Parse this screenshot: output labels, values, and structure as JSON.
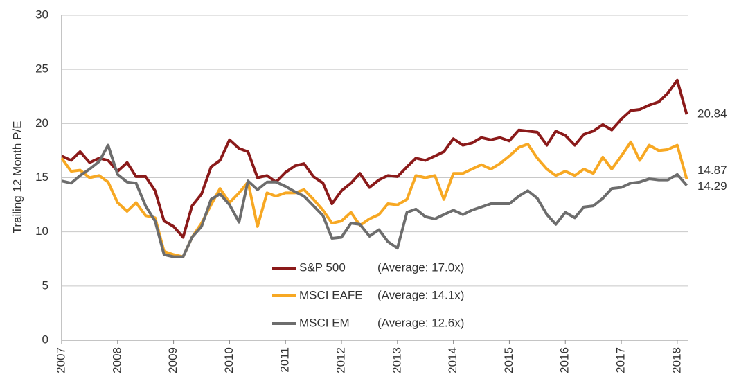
{
  "chart_data": {
    "type": "line",
    "y_label": "Trailing 12 Month P/E",
    "x": [
      2007,
      2007.17,
      2007.33,
      2007.5,
      2007.67,
      2007.83,
      2008,
      2008.17,
      2008.33,
      2008.5,
      2008.67,
      2008.83,
      2009,
      2009.17,
      2009.33,
      2009.5,
      2009.67,
      2009.83,
      2010,
      2010.17,
      2010.33,
      2010.5,
      2010.67,
      2010.83,
      2011,
      2011.17,
      2011.33,
      2011.5,
      2011.67,
      2011.83,
      2012,
      2012.17,
      2012.33,
      2012.5,
      2012.67,
      2012.83,
      2013,
      2013.17,
      2013.33,
      2013.5,
      2013.67,
      2013.83,
      2014,
      2014.17,
      2014.33,
      2014.5,
      2014.67,
      2014.83,
      2015,
      2015.17,
      2015.33,
      2015.5,
      2015.67,
      2015.83,
      2016,
      2016.17,
      2016.33,
      2016.5,
      2016.67,
      2016.83,
      2017,
      2017.17,
      2017.33,
      2017.5,
      2017.67,
      2017.83,
      2018,
      2018.17
    ],
    "series": [
      {
        "name": "S&P 500",
        "average_label": "(Average: 17.0x)",
        "color": "#8b1a1a",
        "values": [
          17.0,
          16.6,
          17.4,
          16.4,
          16.8,
          16.6,
          15.6,
          16.4,
          15.1,
          15.1,
          13.8,
          11.0,
          10.5,
          9.5,
          12.4,
          13.5,
          16.0,
          16.6,
          18.5,
          17.7,
          17.4,
          15.0,
          15.2,
          14.6,
          15.5,
          16.1,
          16.3,
          15.1,
          14.5,
          12.6,
          13.8,
          14.5,
          15.4,
          14.1,
          14.8,
          15.2,
          15.1,
          16.0,
          16.8,
          16.6,
          17.0,
          17.4,
          18.6,
          18.0,
          18.2,
          18.7,
          18.5,
          18.7,
          18.4,
          19.4,
          19.3,
          19.2,
          18.0,
          19.3,
          18.9,
          18.0,
          19.0,
          19.3,
          19.9,
          19.4,
          20.4,
          21.2,
          21.3,
          21.7,
          22.0,
          22.8,
          24.0,
          20.84
        ]
      },
      {
        "name": "MSCI EAFE",
        "average_label": "(Average: 14.1x)",
        "color": "#f7a823",
        "values": [
          16.8,
          15.6,
          15.7,
          15.0,
          15.2,
          14.6,
          12.7,
          11.9,
          12.7,
          11.5,
          11.3,
          8.2,
          7.9,
          7.7,
          9.5,
          10.8,
          12.5,
          14.0,
          12.7,
          13.6,
          14.6,
          10.5,
          13.6,
          13.3,
          13.6,
          13.6,
          13.9,
          13.0,
          12.0,
          10.8,
          11.0,
          11.8,
          10.6,
          11.2,
          11.6,
          12.6,
          12.5,
          13.0,
          15.2,
          15.0,
          15.2,
          13.0,
          15.4,
          15.4,
          15.8,
          16.2,
          15.8,
          16.3,
          17.0,
          17.8,
          18.1,
          16.8,
          15.8,
          15.2,
          15.6,
          15.2,
          15.8,
          15.4,
          16.9,
          15.8,
          17.0,
          18.3,
          16.6,
          18.0,
          17.5,
          17.6,
          18.0,
          14.87
        ]
      },
      {
        "name": "MSCI EM",
        "average_label": "(Average: 12.6x)",
        "color": "#6d6d6d",
        "values": [
          14.7,
          14.5,
          15.2,
          15.8,
          16.5,
          18.0,
          15.3,
          14.6,
          14.5,
          12.4,
          11.0,
          7.9,
          7.7,
          7.7,
          9.5,
          10.5,
          13.0,
          13.5,
          12.5,
          10.9,
          14.7,
          13.9,
          14.6,
          14.6,
          14.2,
          13.7,
          13.3,
          12.4,
          11.5,
          9.4,
          9.5,
          10.8,
          10.7,
          9.6,
          10.2,
          9.1,
          8.5,
          11.8,
          12.1,
          11.4,
          11.2,
          11.6,
          12.0,
          11.6,
          12.0,
          12.3,
          12.6,
          12.6,
          12.6,
          13.3,
          13.8,
          13.1,
          11.6,
          10.7,
          11.8,
          11.3,
          12.3,
          12.4,
          13.1,
          14.0,
          14.1,
          14.5,
          14.6,
          14.9,
          14.8,
          14.8,
          15.3,
          14.29
        ]
      }
    ],
    "xlim": [
      2007,
      2018.2
    ],
    "xticks": [
      2007,
      2008,
      2009,
      2010,
      2011,
      2012,
      2013,
      2014,
      2015,
      2016,
      2017,
      2018
    ],
    "ylim": [
      0,
      30
    ],
    "yticks": [
      0,
      5,
      10,
      15,
      20,
      25,
      30
    ],
    "grid": true
  }
}
